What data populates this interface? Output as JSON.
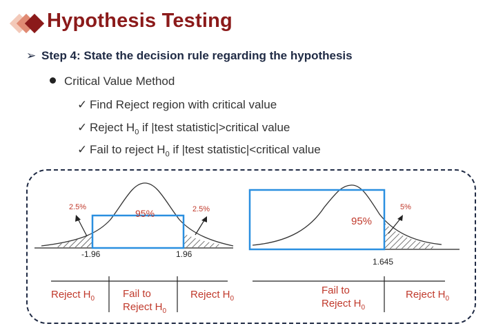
{
  "header": {
    "title": "Hypothesis Testing",
    "colors": {
      "diamond_light": "#f3c9b9",
      "diamond_mid": "#e08a73",
      "diamond_dark": "#8b1a1a",
      "title": "#8b1a1a"
    }
  },
  "step": {
    "arrow_icon": "➢",
    "text": "Step 4: State the decision rule regarding the hypothesis"
  },
  "method": {
    "label": "Critical Value Method"
  },
  "checks": [
    {
      "pre": "Find Reject region with critical value",
      "h": "",
      "post": ""
    },
    {
      "pre": "Reject H",
      "h": "0",
      "post": " if |test statistic|>critical value"
    },
    {
      "pre": "Fail to reject H",
      "h": "0",
      "post": " if |test statistic|<critical value"
    }
  ],
  "two_tailed": {
    "left_tail": "2.5%",
    "right_tail": "2.5%",
    "center": "95%",
    "left_crit": "-1.96",
    "right_crit": "1.96",
    "regions": {
      "left": {
        "text": "Reject H",
        "sub": "0"
      },
      "middle_line1": "Fail to",
      "middle_line2": {
        "text": "Reject H",
        "sub": "0"
      },
      "right": {
        "text": "Reject H",
        "sub": "0"
      }
    }
  },
  "one_tailed": {
    "right_tail": "5%",
    "center": "95%",
    "crit": "1.645",
    "regions": {
      "left_line1": "Fail to",
      "left_line2": {
        "text": "Reject H",
        "sub": "0"
      },
      "right": {
        "text": "Reject H",
        "sub": "0"
      }
    }
  },
  "colors": {
    "highlight_box": "#2a8fe0",
    "label_red": "#c0392b",
    "frame": "#1f2a44"
  }
}
